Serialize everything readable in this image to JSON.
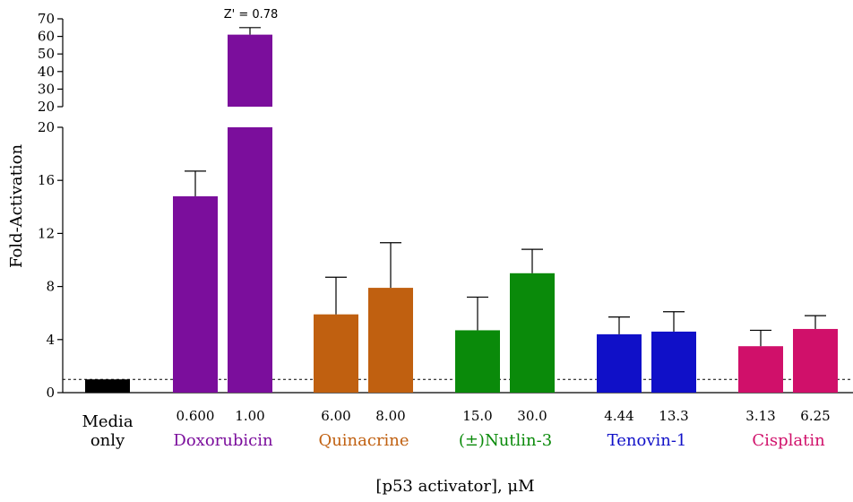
{
  "chart_data": {
    "type": "bar",
    "ylabel": "Fold-Activation",
    "xlabel": "[p53 activator], μM",
    "y_axis_broken": true,
    "y_lower_range": [
      0,
      20
    ],
    "y_lower_ticks": [
      "0",
      "4",
      "8",
      "12",
      "16",
      "20"
    ],
    "y_upper_range": [
      20,
      70
    ],
    "y_upper_ticks": [
      "20",
      "30",
      "40",
      "50",
      "60",
      "70"
    ],
    "baseline": 1,
    "annotation": "Z' = 0.78",
    "bars": [
      {
        "group": "Media only",
        "label": "",
        "value": 1.0,
        "error": 0,
        "color": "#000000"
      },
      {
        "group": "Doxorubicin",
        "label": "0.600",
        "value": 14.8,
        "error": 1.9,
        "color": "#7b0e9c"
      },
      {
        "group": "Doxorubicin",
        "label": "1.00",
        "value": 61,
        "error": 4,
        "color": "#7b0e9c"
      },
      {
        "group": "Quinacrine",
        "label": "6.00",
        "value": 5.9,
        "error": 2.8,
        "color": "#c06010"
      },
      {
        "group": "Quinacrine",
        "label": "8.00",
        "value": 7.9,
        "error": 3.4,
        "color": "#c06010"
      },
      {
        "group": "(±)Nutlin-3",
        "label": "15.0",
        "value": 4.7,
        "error": 2.5,
        "color": "#0a8a0a"
      },
      {
        "group": "(±)Nutlin-3",
        "label": "30.0",
        "value": 9.0,
        "error": 1.8,
        "color": "#0a8a0a"
      },
      {
        "group": "Tenovin-1",
        "label": "4.44",
        "value": 4.4,
        "error": 1.3,
        "color": "#1010c8"
      },
      {
        "group": "Tenovin-1",
        "label": "13.3",
        "value": 4.6,
        "error": 1.5,
        "color": "#1010c8"
      },
      {
        "group": "Cisplatin",
        "label": "3.13",
        "value": 3.5,
        "error": 1.2,
        "color": "#d0106a"
      },
      {
        "group": "Cisplatin",
        "label": "6.25",
        "value": 4.8,
        "error": 1.0,
        "color": "#d0106a"
      }
    ],
    "groups": [
      {
        "name": "Media\nonly",
        "color": "#000000"
      },
      {
        "name": "Doxorubicin",
        "color": "#7b0e9c"
      },
      {
        "name": "Quinacrine",
        "color": "#c06010"
      },
      {
        "name": "(±)Nutlin-3",
        "color": "#0a8a0a"
      },
      {
        "name": "Tenovin-1",
        "color": "#1010c8"
      },
      {
        "name": "Cisplatin",
        "color": "#d0106a"
      }
    ]
  }
}
